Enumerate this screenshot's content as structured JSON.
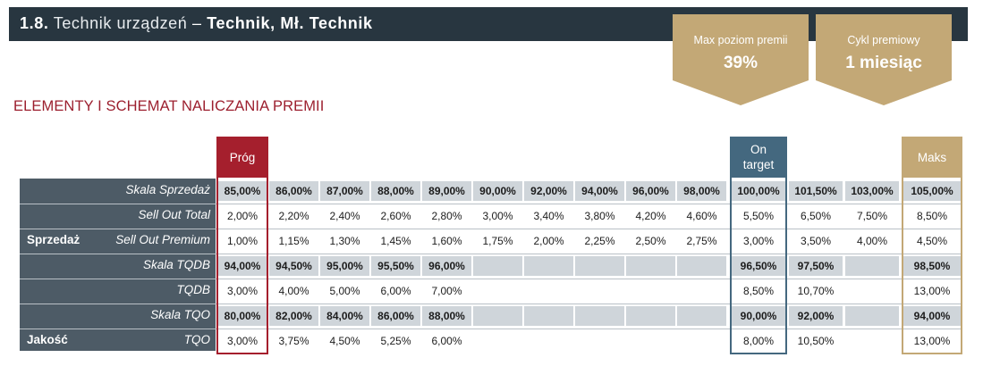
{
  "title": {
    "num": "1.8.",
    "light": "Technik urządzeń",
    "sep": " – ",
    "bold": "Technik, Mł. Technik"
  },
  "badges": [
    {
      "label": "Max poziom premii",
      "value": "39%"
    },
    {
      "label": "Cykl premiowy",
      "value": "1 miesiąc"
    }
  ],
  "section_heading": "ELEMENTY I SCHEMAT NALICZANIA PREMII",
  "column_headers": {
    "prog": "Próg",
    "on_target": "On\ntarget",
    "maks": "Maks"
  },
  "colors": {
    "dark": "#283640",
    "panel": "#4d5b66",
    "gold": "#c3a876",
    "red": "#a51f2d",
    "blue": "#44687f",
    "shade": "#cfd5da",
    "heading": "#9c1f2e"
  },
  "categories": [
    {
      "label": "Sprzedaż",
      "row": 2
    },
    {
      "label": "Jakość",
      "row": 6
    }
  ],
  "rows": [
    {
      "label": "Skala Sprzedaż",
      "shaded": true,
      "bold": true,
      "cells": [
        "85,00%",
        "86,00%",
        "87,00%",
        "88,00%",
        "89,00%",
        "90,00%",
        "92,00%",
        "94,00%",
        "96,00%",
        "98,00%",
        "100,00%",
        "101,50%",
        "103,00%",
        "105,00%"
      ]
    },
    {
      "label": "Sell Out Total",
      "shaded": false,
      "bold": false,
      "cells": [
        "2,00%",
        "2,20%",
        "2,40%",
        "2,60%",
        "2,80%",
        "3,00%",
        "3,40%",
        "3,80%",
        "4,20%",
        "4,60%",
        "5,50%",
        "6,50%",
        "7,50%",
        "8,50%"
      ]
    },
    {
      "label": "Sell Out Premium",
      "shaded": false,
      "bold": false,
      "cells": [
        "1,00%",
        "1,15%",
        "1,30%",
        "1,45%",
        "1,60%",
        "1,75%",
        "2,00%",
        "2,25%",
        "2,50%",
        "2,75%",
        "3,00%",
        "3,50%",
        "4,00%",
        "4,50%"
      ]
    },
    {
      "label": "Skala TQDB",
      "shaded": true,
      "bold": true,
      "cells": [
        "94,00%",
        "94,50%",
        "95,00%",
        "95,50%",
        "96,00%",
        "",
        "",
        "",
        "",
        "",
        "96,50%",
        "97,50%",
        "",
        "98,50%"
      ]
    },
    {
      "label": "TQDB",
      "shaded": false,
      "bold": false,
      "cells": [
        "3,00%",
        "4,00%",
        "5,00%",
        "6,00%",
        "7,00%",
        "",
        "",
        "",
        "",
        "",
        "8,50%",
        "10,70%",
        "",
        "13,00%"
      ]
    },
    {
      "label": "Skala TQO",
      "shaded": true,
      "bold": true,
      "cells": [
        "80,00%",
        "82,00%",
        "84,00%",
        "86,00%",
        "88,00%",
        "",
        "",
        "",
        "",
        "",
        "90,00%",
        "92,00%",
        "",
        "94,00%"
      ]
    },
    {
      "label": "TQO",
      "shaded": false,
      "bold": false,
      "cells": [
        "3,00%",
        "3,75%",
        "4,50%",
        "5,25%",
        "6,00%",
        "",
        "",
        "",
        "",
        "",
        "8,00%",
        "10,50%",
        "",
        "13,00%"
      ]
    }
  ]
}
